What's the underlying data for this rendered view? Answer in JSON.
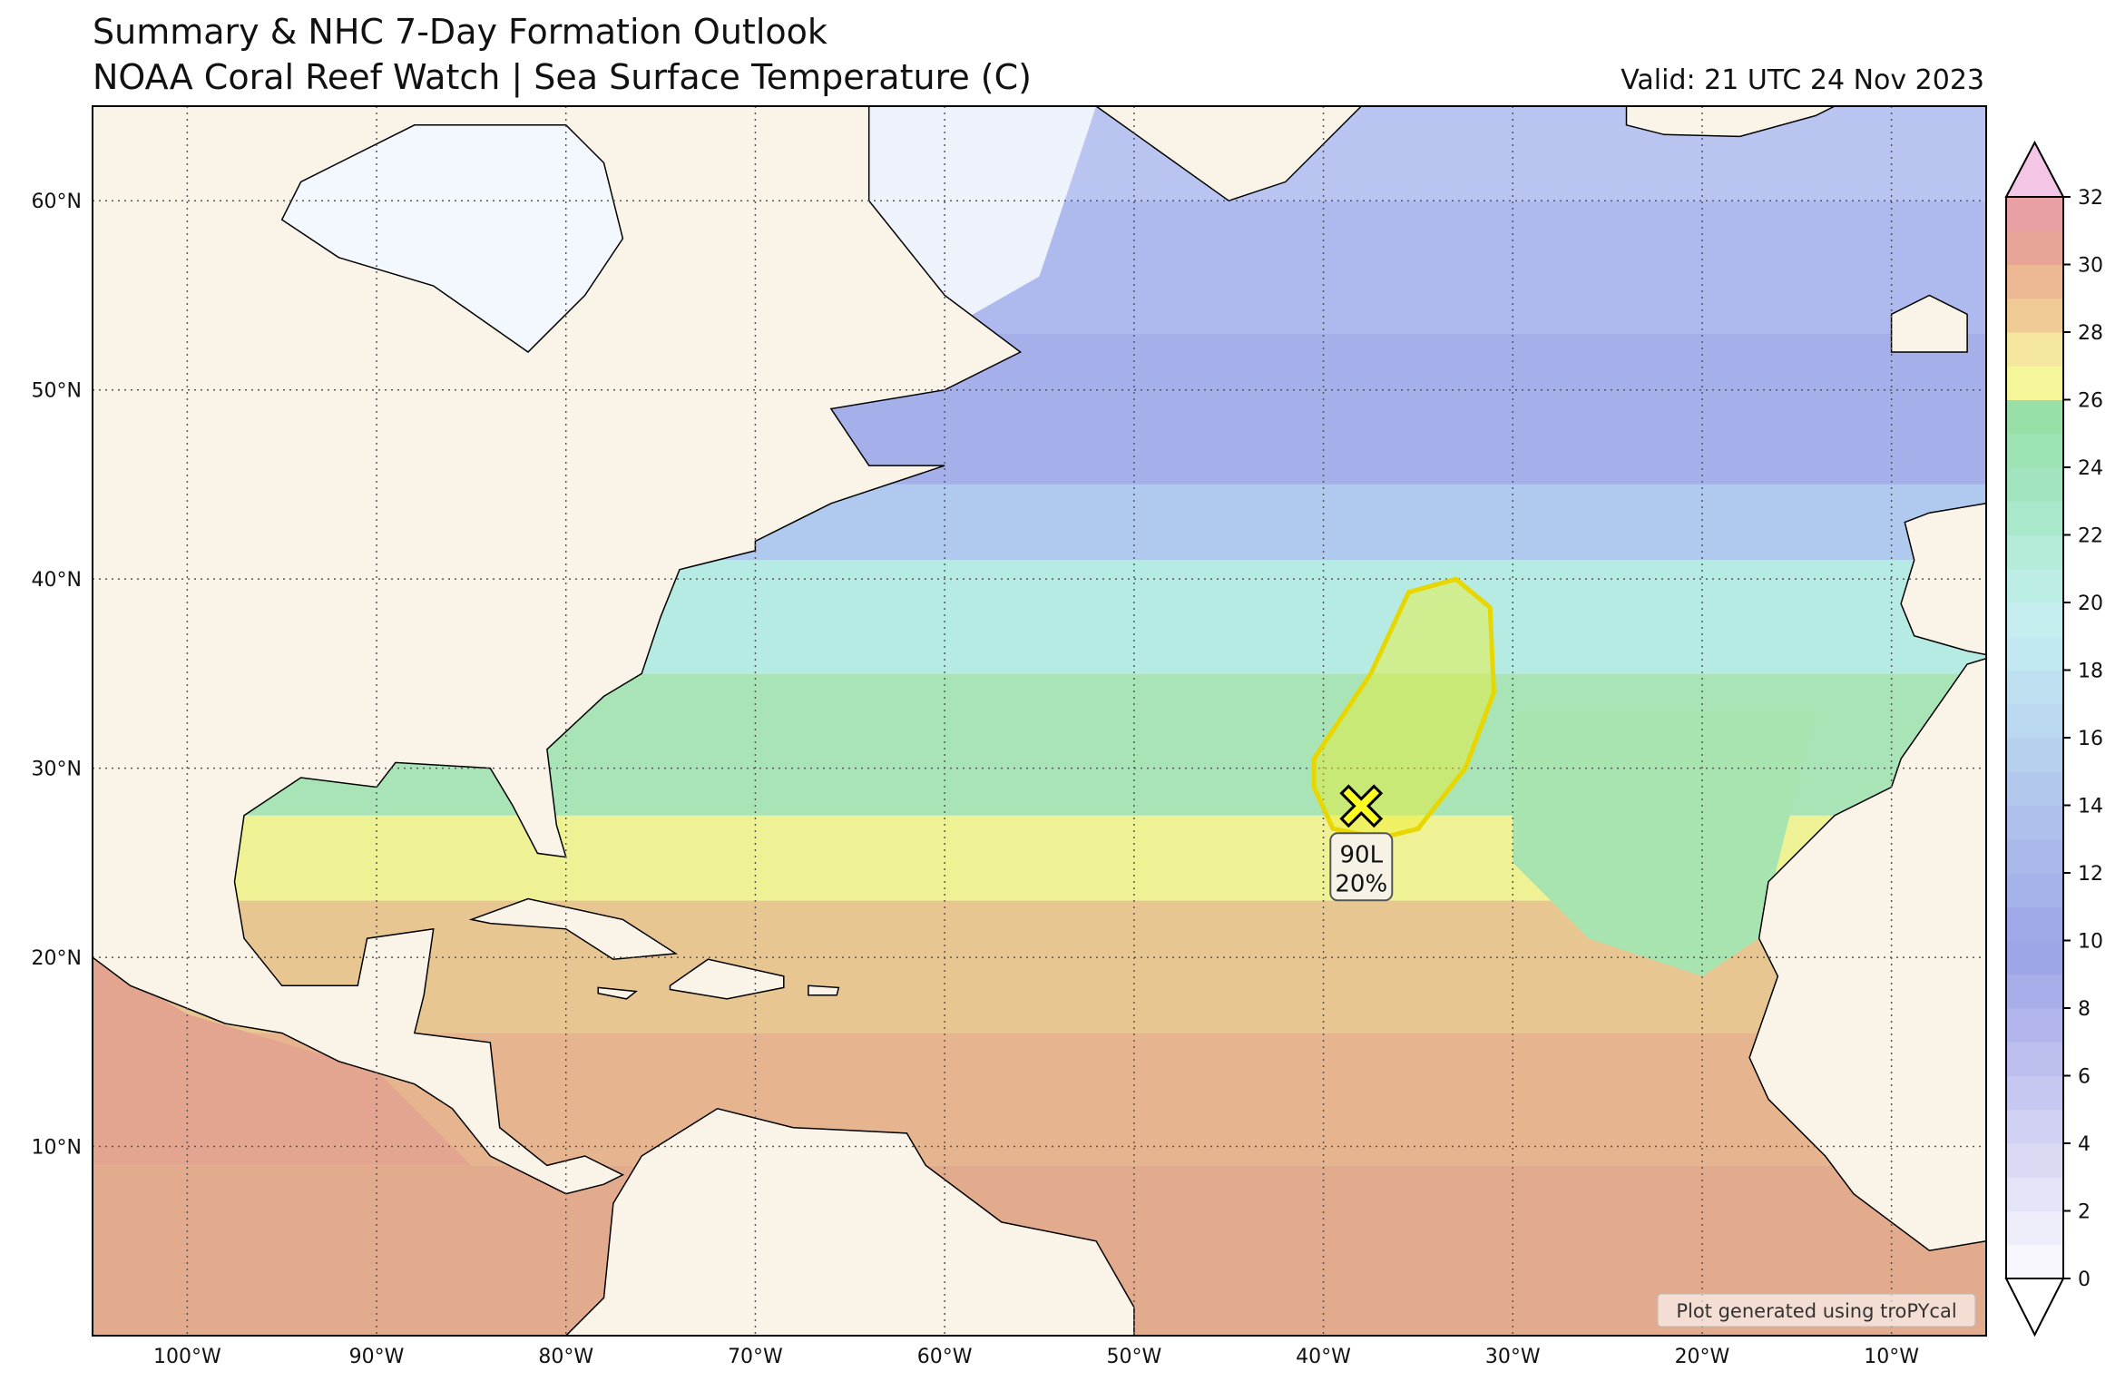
{
  "header": {
    "title": "Summary & NHC 7-Day Formation Outlook",
    "subtitle": "NOAA Coral Reef Watch | Sea Surface Temperature (C)",
    "valid": "Valid: 21 UTC 24 Nov 2023"
  },
  "map": {
    "xlim": [
      -105,
      -5
    ],
    "ylim": [
      0,
      65
    ],
    "grid": true,
    "xticks": [
      {
        "value": -100,
        "label": "100°W"
      },
      {
        "value": -90,
        "label": "90°W"
      },
      {
        "value": -80,
        "label": "80°W"
      },
      {
        "value": -70,
        "label": "70°W"
      },
      {
        "value": -60,
        "label": "60°W"
      },
      {
        "value": -50,
        "label": "50°W"
      },
      {
        "value": -40,
        "label": "40°W"
      },
      {
        "value": -30,
        "label": "30°W"
      },
      {
        "value": -20,
        "label": "20°W"
      },
      {
        "value": -10,
        "label": "10°W"
      }
    ],
    "yticks": [
      {
        "value": 10,
        "label": "10°N"
      },
      {
        "value": 20,
        "label": "20°N"
      },
      {
        "value": 30,
        "label": "30°N"
      },
      {
        "value": 40,
        "label": "40°N"
      },
      {
        "value": 50,
        "label": "50°N"
      },
      {
        "value": 60,
        "label": "60°N"
      }
    ]
  },
  "colorbar": {
    "lim": [
      0,
      32
    ],
    "ticks": [
      0,
      2,
      4,
      6,
      8,
      10,
      12,
      14,
      16,
      18,
      20,
      22,
      24,
      26,
      28,
      30,
      32
    ],
    "colors": [
      "#f7f7fd",
      "#eeeefb",
      "#e4e4f8",
      "#dadaf5",
      "#d0d1f3",
      "#c6c8f1",
      "#bcbfee",
      "#b2b6ec",
      "#a8aee9",
      "#9da5e7",
      "#a0aae9",
      "#a6b2ea",
      "#aab8ea",
      "#aec0eb",
      "#b2c8ec",
      "#b6d0ee",
      "#bad8f0",
      "#bee0f1",
      "#c2e8f2",
      "#c6eef1",
      "#bdeee6",
      "#b4ecd9",
      "#aae8cc",
      "#a2e4bf",
      "#9ee3b4",
      "#98e0a8",
      "#f5f59a",
      "#f5e7a0",
      "#f0cb95",
      "#ecb894",
      "#e8a496",
      "#e9a0a4"
    ],
    "over": "#f3c6e6",
    "under": "#ffffff"
  },
  "storm": {
    "name": "90L",
    "probability": "20%",
    "lon": -38,
    "lat": 28
  },
  "credit": "Plot generated using troPYcal"
}
